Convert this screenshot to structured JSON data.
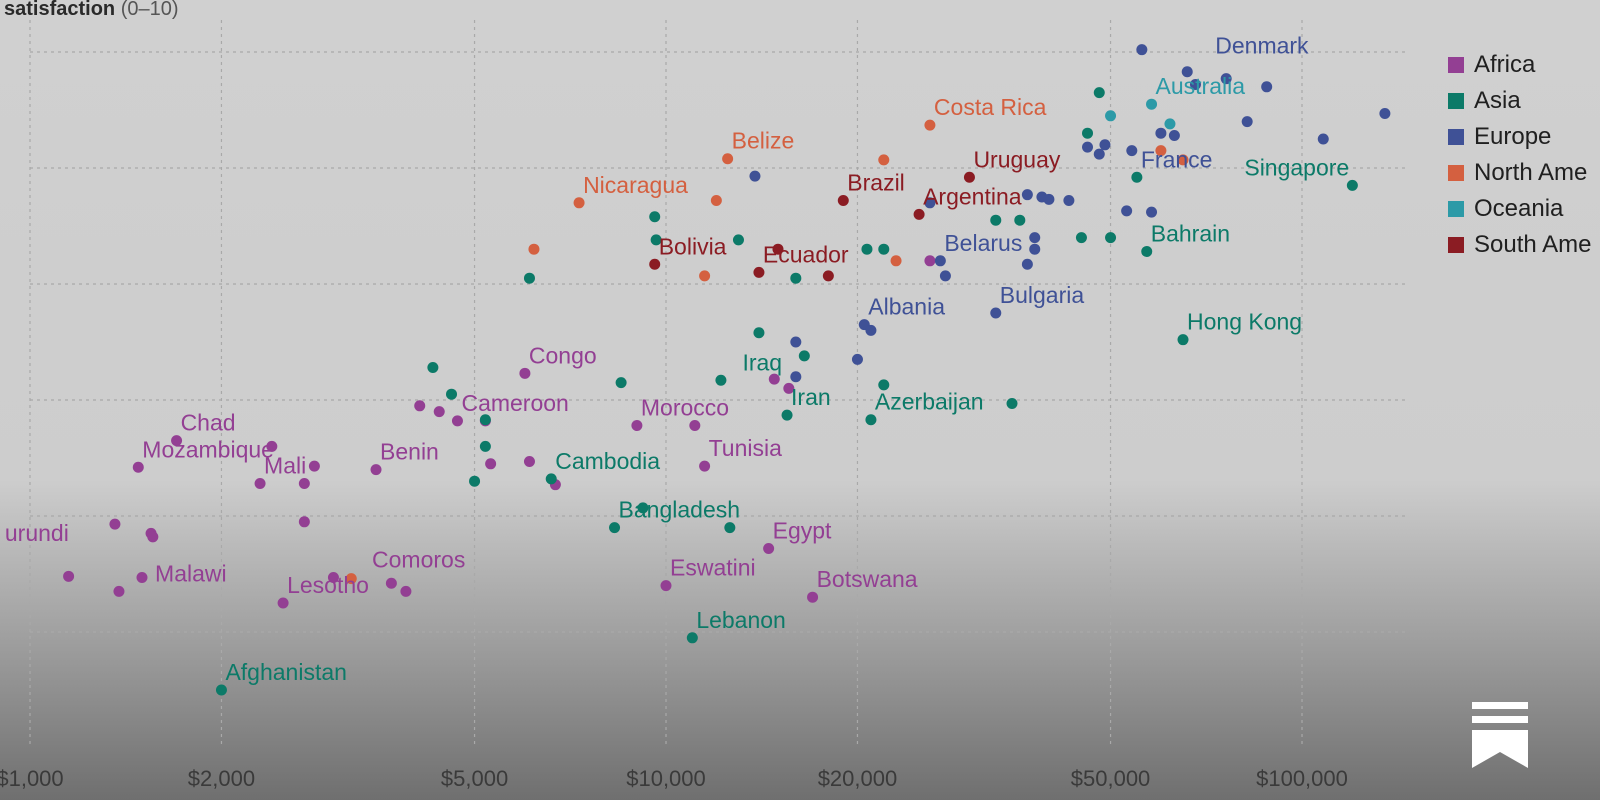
{
  "y_axis_title": {
    "bold": "satisfaction",
    "unit": "(0–10)"
  },
  "chart_data": {
    "type": "scatter",
    "x_scale": "log",
    "xlim": [
      900,
      140000
    ],
    "ylim": [
      2.5,
      8.2
    ],
    "x_ticks": [
      {
        "value": 1000,
        "label": "$1,000"
      },
      {
        "value": 2000,
        "label": "$2,000"
      },
      {
        "value": 5000,
        "label": "$5,000"
      },
      {
        "value": 10000,
        "label": "$10,000"
      },
      {
        "value": 20000,
        "label": "$20,000"
      },
      {
        "value": 50000,
        "label": "$50,000"
      },
      {
        "value": 100000,
        "label": "$100,000"
      }
    ],
    "y_grid": [
      3,
      4,
      5,
      6,
      7,
      8
    ],
    "grid": true,
    "legend_position": "top-right",
    "colors": {
      "Africa": "#933f93",
      "Asia": "#0c7a68",
      "Europe": "#3f5196",
      "North America": "#d46040",
      "Oceania": "#2c9aa7",
      "South America": "#8b1c23"
    },
    "legend": [
      {
        "name": "Africa",
        "label": "Africa"
      },
      {
        "name": "Asia",
        "label": "Asia"
      },
      {
        "name": "Europe",
        "label": "Europe"
      },
      {
        "name": "North America",
        "label": "North Ame"
      },
      {
        "name": "Oceania",
        "label": "Oceania"
      },
      {
        "name": "South America",
        "label": "South Ame"
      }
    ],
    "points": [
      {
        "x": 1150,
        "y": 3.48,
        "region": "Africa"
      },
      {
        "x": 1380,
        "y": 3.35,
        "region": "Africa"
      },
      {
        "x": 1480,
        "y": 4.42,
        "region": "Africa"
      },
      {
        "x": 1500,
        "y": 3.47,
        "region": "Africa"
      },
      {
        "x": 1550,
        "y": 3.85,
        "region": "Africa"
      },
      {
        "x": 1560,
        "y": 3.82,
        "region": "Africa"
      },
      {
        "x": 1700,
        "y": 4.65,
        "region": "Africa"
      },
      {
        "x": 1360,
        "y": 3.93,
        "region": "Africa"
      },
      {
        "x": 2400,
        "y": 4.6,
        "region": "Africa"
      },
      {
        "x": 2300,
        "y": 4.28,
        "region": "Africa"
      },
      {
        "x": 2800,
        "y": 4.43,
        "region": "Africa"
      },
      {
        "x": 2700,
        "y": 4.28,
        "region": "Africa"
      },
      {
        "x": 2700,
        "y": 3.95,
        "region": "Africa"
      },
      {
        "x": 2500,
        "y": 3.25,
        "region": "Africa"
      },
      {
        "x": 3000,
        "y": 3.47,
        "region": "Africa"
      },
      {
        "x": 3700,
        "y": 3.42,
        "region": "Africa"
      },
      {
        "x": 3900,
        "y": 3.35,
        "region": "Africa"
      },
      {
        "x": 3500,
        "y": 4.4,
        "region": "Africa"
      },
      {
        "x": 4100,
        "y": 4.95,
        "region": "Africa"
      },
      {
        "x": 4400,
        "y": 4.9,
        "region": "Africa"
      },
      {
        "x": 4700,
        "y": 4.82,
        "region": "Africa"
      },
      {
        "x": 5200,
        "y": 4.82,
        "region": "Africa"
      },
      {
        "x": 5300,
        "y": 4.45,
        "region": "Africa"
      },
      {
        "x": 6100,
        "y": 4.47,
        "region": "Africa"
      },
      {
        "x": 6700,
        "y": 4.27,
        "region": "Africa"
      },
      {
        "x": 9000,
        "y": 4.78,
        "region": "Africa"
      },
      {
        "x": 11500,
        "y": 4.43,
        "region": "Africa"
      },
      {
        "x": 10000,
        "y": 3.4,
        "region": "Africa"
      },
      {
        "x": 14500,
        "y": 3.72,
        "region": "Africa"
      },
      {
        "x": 17000,
        "y": 3.3,
        "region": "Africa"
      },
      {
        "x": 11100,
        "y": 4.78,
        "region": "Africa"
      },
      {
        "x": 14800,
        "y": 5.18,
        "region": "Africa"
      },
      {
        "x": 15600,
        "y": 5.1,
        "region": "Africa"
      },
      {
        "x": 6000,
        "y": 5.23,
        "region": "Africa"
      },
      {
        "x": 26000,
        "y": 6.2,
        "region": "Africa"
      },
      {
        "x": 2000,
        "y": 2.5,
        "region": "Asia"
      },
      {
        "x": 11000,
        "y": 2.95,
        "region": "Asia"
      },
      {
        "x": 8300,
        "y": 3.9,
        "region": "Asia"
      },
      {
        "x": 9200,
        "y": 4.07,
        "region": "Asia"
      },
      {
        "x": 12600,
        "y": 3.9,
        "region": "Asia"
      },
      {
        "x": 6600,
        "y": 4.32,
        "region": "Asia"
      },
      {
        "x": 5000,
        "y": 4.3,
        "region": "Asia"
      },
      {
        "x": 5200,
        "y": 4.6,
        "region": "Asia"
      },
      {
        "x": 4600,
        "y": 5.05,
        "region": "Asia"
      },
      {
        "x": 5200,
        "y": 4.83,
        "region": "Asia"
      },
      {
        "x": 8500,
        "y": 5.15,
        "region": "Asia"
      },
      {
        "x": 4300,
        "y": 5.28,
        "region": "Asia"
      },
      {
        "x": 6100,
        "y": 6.05,
        "region": "Asia"
      },
      {
        "x": 9600,
        "y": 6.58,
        "region": "Asia"
      },
      {
        "x": 9650,
        "y": 6.38,
        "region": "Asia"
      },
      {
        "x": 12200,
        "y": 5.17,
        "region": "Asia"
      },
      {
        "x": 14000,
        "y": 5.58,
        "region": "Asia"
      },
      {
        "x": 13000,
        "y": 6.38,
        "region": "Asia"
      },
      {
        "x": 16500,
        "y": 5.38,
        "region": "Asia"
      },
      {
        "x": 16000,
        "y": 6.05,
        "region": "Asia"
      },
      {
        "x": 15500,
        "y": 4.87,
        "region": "Asia"
      },
      {
        "x": 21000,
        "y": 4.83,
        "region": "Asia"
      },
      {
        "x": 22000,
        "y": 5.13,
        "region": "Asia"
      },
      {
        "x": 20700,
        "y": 6.3,
        "region": "Asia"
      },
      {
        "x": 22000,
        "y": 6.3,
        "region": "Asia"
      },
      {
        "x": 33000,
        "y": 6.55,
        "region": "Asia"
      },
      {
        "x": 35000,
        "y": 4.97,
        "region": "Asia"
      },
      {
        "x": 45000,
        "y": 6.4,
        "region": "Asia"
      },
      {
        "x": 50000,
        "y": 6.4,
        "region": "Asia"
      },
      {
        "x": 57000,
        "y": 6.28,
        "region": "Asia"
      },
      {
        "x": 46000,
        "y": 7.3,
        "region": "Asia"
      },
      {
        "x": 48000,
        "y": 7.65,
        "region": "Asia"
      },
      {
        "x": 55000,
        "y": 6.92,
        "region": "Asia"
      },
      {
        "x": 65000,
        "y": 5.52,
        "region": "Asia"
      },
      {
        "x": 120000,
        "y": 6.85,
        "region": "Asia"
      },
      {
        "x": 36000,
        "y": 6.55,
        "region": "Asia"
      },
      {
        "x": 56000,
        "y": 8.02,
        "region": "Europe"
      },
      {
        "x": 66000,
        "y": 7.83,
        "region": "Europe"
      },
      {
        "x": 68000,
        "y": 7.72,
        "region": "Europe"
      },
      {
        "x": 88000,
        "y": 7.7,
        "region": "Europe"
      },
      {
        "x": 76000,
        "y": 7.77,
        "region": "Europe"
      },
      {
        "x": 82000,
        "y": 7.4,
        "region": "Europe"
      },
      {
        "x": 108000,
        "y": 7.25,
        "region": "Europe"
      },
      {
        "x": 135000,
        "y": 7.47,
        "region": "Europe"
      },
      {
        "x": 60000,
        "y": 7.3,
        "region": "Europe"
      },
      {
        "x": 63000,
        "y": 7.28,
        "region": "Europe"
      },
      {
        "x": 54000,
        "y": 7.15,
        "region": "Europe"
      },
      {
        "x": 46000,
        "y": 7.18,
        "region": "Europe"
      },
      {
        "x": 48000,
        "y": 7.12,
        "region": "Europe"
      },
      {
        "x": 49000,
        "y": 7.2,
        "region": "Europe"
      },
      {
        "x": 37000,
        "y": 6.77,
        "region": "Europe"
      },
      {
        "x": 39000,
        "y": 6.75,
        "region": "Europe"
      },
      {
        "x": 40000,
        "y": 6.73,
        "region": "Europe"
      },
      {
        "x": 43000,
        "y": 6.72,
        "region": "Europe"
      },
      {
        "x": 53000,
        "y": 6.63,
        "region": "Europe"
      },
      {
        "x": 58000,
        "y": 6.62,
        "region": "Europe"
      },
      {
        "x": 38000,
        "y": 6.4,
        "region": "Europe"
      },
      {
        "x": 38000,
        "y": 6.3,
        "region": "Europe"
      },
      {
        "x": 37000,
        "y": 6.17,
        "region": "Europe"
      },
      {
        "x": 33000,
        "y": 5.75,
        "region": "Europe"
      },
      {
        "x": 26000,
        "y": 6.7,
        "region": "Europe"
      },
      {
        "x": 27000,
        "y": 6.2,
        "region": "Europe"
      },
      {
        "x": 27500,
        "y": 6.07,
        "region": "Europe"
      },
      {
        "x": 13800,
        "y": 6.93,
        "region": "Europe"
      },
      {
        "x": 20500,
        "y": 5.65,
        "region": "Europe"
      },
      {
        "x": 21000,
        "y": 5.6,
        "region": "Europe"
      },
      {
        "x": 20000,
        "y": 5.35,
        "region": "Europe"
      },
      {
        "x": 16000,
        "y": 5.2,
        "region": "Europe"
      },
      {
        "x": 16000,
        "y": 5.5,
        "region": "Europe"
      },
      {
        "x": 65000,
        "y": 7.07,
        "region": "North America"
      },
      {
        "x": 60000,
        "y": 7.15,
        "region": "North America"
      },
      {
        "x": 26000,
        "y": 7.37,
        "region": "North America"
      },
      {
        "x": 22000,
        "y": 7.07,
        "region": "North America"
      },
      {
        "x": 12500,
        "y": 7.08,
        "region": "North America"
      },
      {
        "x": 12000,
        "y": 6.72,
        "region": "North America"
      },
      {
        "x": 7300,
        "y": 6.7,
        "region": "North America"
      },
      {
        "x": 6200,
        "y": 6.3,
        "region": "North America"
      },
      {
        "x": 11500,
        "y": 6.07,
        "region": "North America"
      },
      {
        "x": 23000,
        "y": 6.2,
        "region": "North America"
      },
      {
        "x": 3200,
        "y": 3.46,
        "region": "North America"
      },
      {
        "x": 58000,
        "y": 7.55,
        "region": "Oceania"
      },
      {
        "x": 50000,
        "y": 7.45,
        "region": "Oceania"
      },
      {
        "x": 62000,
        "y": 7.38,
        "region": "Oceania"
      },
      {
        "x": 30000,
        "y": 6.92,
        "region": "South America"
      },
      {
        "x": 19000,
        "y": 6.72,
        "region": "South America"
      },
      {
        "x": 25000,
        "y": 6.6,
        "region": "South America"
      },
      {
        "x": 18000,
        "y": 6.07,
        "region": "South America"
      },
      {
        "x": 14000,
        "y": 6.1,
        "region": "South America"
      },
      {
        "x": 15000,
        "y": 6.3,
        "region": "South America"
      },
      {
        "x": 9600,
        "y": 6.17,
        "region": "South America"
      }
    ],
    "labels": [
      {
        "text": "Afghanistan",
        "x": 2000,
        "y": 2.5,
        "region": "Asia"
      },
      {
        "text": "Lebanon",
        "x": 11000,
        "y": 2.95,
        "region": "Asia"
      },
      {
        "text": "Lesotho",
        "x": 2500,
        "y": 3.25,
        "region": "Africa"
      },
      {
        "text": "Malawi",
        "x": 1550,
        "y": 3.35,
        "region": "Africa"
      },
      {
        "text": "Comoros",
        "x": 3400,
        "y": 3.47,
        "region": "Africa"
      },
      {
        "text": "Eswatini",
        "x": 10000,
        "y": 3.4,
        "region": "Africa"
      },
      {
        "text": "Botswana",
        "x": 17000,
        "y": 3.3,
        "region": "Africa"
      },
      {
        "text": "urundi",
        "x": 900,
        "y": 3.7,
        "region": "Africa"
      },
      {
        "text": "Bangladesh",
        "x": 8300,
        "y": 3.9,
        "region": "Asia"
      },
      {
        "text": "Egypt",
        "x": 14500,
        "y": 3.72,
        "region": "Africa"
      },
      {
        "text": "Mali",
        "x": 2300,
        "y": 4.28,
        "region": "Africa"
      },
      {
        "text": "Chad",
        "x": 1700,
        "y": 4.65,
        "region": "Africa"
      },
      {
        "text": "Benin",
        "x": 3500,
        "y": 4.4,
        "region": "Africa"
      },
      {
        "text": "Cambodia",
        "x": 6600,
        "y": 4.32,
        "region": "Asia"
      },
      {
        "text": "Tunisia",
        "x": 11500,
        "y": 4.43,
        "region": "Africa"
      },
      {
        "text": "Cameroon",
        "x": 4700,
        "y": 4.82,
        "region": "Africa"
      },
      {
        "text": "Morocco",
        "x": 9000,
        "y": 4.78,
        "region": "Africa"
      },
      {
        "text": "Iran",
        "x": 15500,
        "y": 4.87,
        "region": "Asia"
      },
      {
        "text": "Azerbaijan",
        "x": 21000,
        "y": 4.83,
        "region": "Asia"
      },
      {
        "text": "Mozambique",
        "x": 1480,
        "y": 4.42,
        "region": "Africa"
      },
      {
        "text": "Congo",
        "x": 6000,
        "y": 5.23,
        "region": "Africa"
      },
      {
        "text": "Iraq",
        "x": 13000,
        "y": 5.17,
        "region": "Asia"
      },
      {
        "text": "Albania",
        "x": 20500,
        "y": 5.65,
        "region": "Europe"
      },
      {
        "text": "Bulgaria",
        "x": 33000,
        "y": 5.75,
        "region": "Europe"
      },
      {
        "text": "Hong Kong",
        "x": 65000,
        "y": 5.52,
        "region": "Asia"
      },
      {
        "text": "Bolivia",
        "x": 9600,
        "y": 6.17,
        "region": "South America"
      },
      {
        "text": "Ecuador",
        "x": 14000,
        "y": 6.1,
        "region": "South America"
      },
      {
        "text": "Belarus",
        "x": 27000,
        "y": 6.2,
        "region": "Europe"
      },
      {
        "text": "Bahrain",
        "x": 57000,
        "y": 6.28,
        "region": "Asia"
      },
      {
        "text": "Nicaragua",
        "x": 7300,
        "y": 6.7,
        "region": "North America"
      },
      {
        "text": "Brazil",
        "x": 19000,
        "y": 6.72,
        "region": "South America"
      },
      {
        "text": "Argentina",
        "x": 25000,
        "y": 6.6,
        "region": "South America"
      },
      {
        "text": "Uruguay",
        "x": 30000,
        "y": 6.92,
        "region": "South America"
      },
      {
        "text": "Belize",
        "x": 12500,
        "y": 7.08,
        "region": "North America"
      },
      {
        "text": "Costa Rica",
        "x": 26000,
        "y": 7.37,
        "region": "North America"
      },
      {
        "text": "France",
        "x": 55000,
        "y": 6.92,
        "region": "Europe"
      },
      {
        "text": "Singapore",
        "x": 80000,
        "y": 6.85,
        "region": "Asia"
      },
      {
        "text": "Australia",
        "x": 58000,
        "y": 7.55,
        "region": "Oceania"
      },
      {
        "text": "Denmark",
        "x": 72000,
        "y": 7.9,
        "region": "Europe"
      }
    ]
  }
}
